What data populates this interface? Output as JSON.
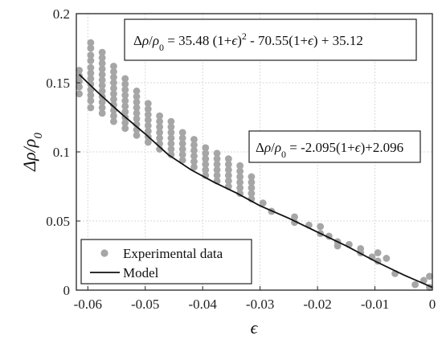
{
  "chart_data": {
    "type": "scatter",
    "xlabel": "ε",
    "ylabel": "Δρ/ρ0",
    "xlim": [
      -0.062,
      0
    ],
    "ylim": [
      0,
      0.2
    ],
    "grid": true,
    "xticks": [
      "-0.06",
      "-0.05",
      "-0.04",
      "-0.03",
      "-0.02",
      "-0.01",
      "0"
    ],
    "yticks": [
      "0",
      "0.05",
      "0.1",
      "0.15",
      "0.2"
    ],
    "legend": {
      "placement": "bottom-left",
      "entries": [
        {
          "label": "Experimental data",
          "marker": "circle",
          "color": "#a6a6a6"
        },
        {
          "label": "Model",
          "marker": "line",
          "color": "#111111"
        }
      ]
    },
    "annotations": [
      {
        "text": "Δρ/ρ0 = 35.48 (1+ε)2 - 70.55(1+ε) + 35.12"
      },
      {
        "text": "Δρ/ρ0 = -2.095(1+ε)+2.096"
      }
    ],
    "series": [
      {
        "name": "Experimental data",
        "type": "scatter",
        "color": "#a6a6a6",
        "clusters": [
          {
            "x": -0.0615,
            "y": [
              0.142,
              0.147,
              0.151,
              0.155,
              0.159
            ]
          },
          {
            "x": -0.0595,
            "y": [
              0.132,
              0.137,
              0.141,
              0.145,
              0.149,
              0.153,
              0.157,
              0.161,
              0.166,
              0.17,
              0.175,
              0.179
            ]
          },
          {
            "x": -0.0575,
            "y": [
              0.128,
              0.132,
              0.136,
              0.14,
              0.144,
              0.148,
              0.152,
              0.156,
              0.16,
              0.164,
              0.168,
              0.172
            ]
          },
          {
            "x": -0.0555,
            "y": [
              0.122,
              0.126,
              0.13,
              0.134,
              0.138,
              0.142,
              0.146,
              0.15,
              0.154,
              0.158,
              0.162
            ]
          },
          {
            "x": -0.0535,
            "y": [
              0.117,
              0.121,
              0.125,
              0.129,
              0.133,
              0.137,
              0.141,
              0.145,
              0.149,
              0.153
            ]
          },
          {
            "x": -0.0515,
            "y": [
              0.112,
              0.116,
              0.12,
              0.124,
              0.128,
              0.132,
              0.136,
              0.14,
              0.144
            ]
          },
          {
            "x": -0.0495,
            "y": [
              0.107,
              0.111,
              0.115,
              0.119,
              0.123,
              0.127,
              0.131,
              0.135
            ]
          },
          {
            "x": -0.0475,
            "y": [
              0.102,
              0.106,
              0.11,
              0.114,
              0.118,
              0.122,
              0.126
            ]
          },
          {
            "x": -0.0455,
            "y": [
              0.098,
              0.102,
              0.106,
              0.11,
              0.114,
              0.118,
              0.122
            ]
          },
          {
            "x": -0.0435,
            "y": [
              0.094,
              0.098,
              0.102,
              0.106,
              0.11,
              0.114
            ]
          },
          {
            "x": -0.0415,
            "y": [
              0.089,
              0.093,
              0.097,
              0.101,
              0.105,
              0.109
            ]
          },
          {
            "x": -0.0395,
            "y": [
              0.083,
              0.087,
              0.091,
              0.095,
              0.099,
              0.103
            ]
          },
          {
            "x": -0.0375,
            "y": [
              0.079,
              0.083,
              0.087,
              0.091,
              0.095,
              0.099
            ]
          },
          {
            "x": -0.0355,
            "y": [
              0.075,
              0.079,
              0.083,
              0.087,
              0.091,
              0.095
            ]
          },
          {
            "x": -0.0335,
            "y": [
              0.07,
              0.074,
              0.078,
              0.082,
              0.086,
              0.09
            ]
          },
          {
            "x": -0.0315,
            "y": [
              0.066,
              0.07,
              0.074,
              0.078,
              0.082
            ]
          },
          {
            "x": -0.0295,
            "y": [
              0.063
            ]
          },
          {
            "x": -0.028,
            "y": [
              0.057
            ]
          },
          {
            "x": -0.024,
            "y": [
              0.053,
              0.049
            ]
          },
          {
            "x": -0.0215,
            "y": [
              0.047
            ]
          },
          {
            "x": -0.0195,
            "y": [
              0.046,
              0.041
            ]
          },
          {
            "x": -0.018,
            "y": [
              0.039
            ]
          },
          {
            "x": -0.0165,
            "y": [
              0.035,
              0.032
            ]
          },
          {
            "x": -0.0145,
            "y": [
              0.033
            ]
          },
          {
            "x": -0.0125,
            "y": [
              0.03,
              0.027
            ]
          },
          {
            "x": -0.0105,
            "y": [
              0.024
            ]
          },
          {
            "x": -0.0095,
            "y": [
              0.027,
              0.021
            ]
          },
          {
            "x": -0.008,
            "y": [
              0.023
            ]
          },
          {
            "x": -0.0065,
            "y": [
              0.012
            ]
          },
          {
            "x": -0.003,
            "y": [
              0.004
            ]
          },
          {
            "x": -0.0015,
            "y": [
              0.007
            ]
          },
          {
            "x": -0.0005,
            "y": [
              0.01,
              0.002
            ]
          }
        ]
      },
      {
        "name": "Model",
        "type": "line",
        "color": "#111111",
        "x": [
          -0.0615,
          -0.058,
          -0.054,
          -0.05,
          -0.046,
          -0.042,
          -0.038,
          -0.034,
          -0.03,
          -0.025,
          -0.02,
          -0.015,
          -0.01,
          -0.005,
          0
        ],
        "y": [
          0.156,
          0.142,
          0.127,
          0.113,
          0.098,
          0.087,
          0.078,
          0.07,
          0.061,
          0.052,
          0.042,
          0.032,
          0.021,
          0.011,
          0.002
        ]
      }
    ]
  }
}
